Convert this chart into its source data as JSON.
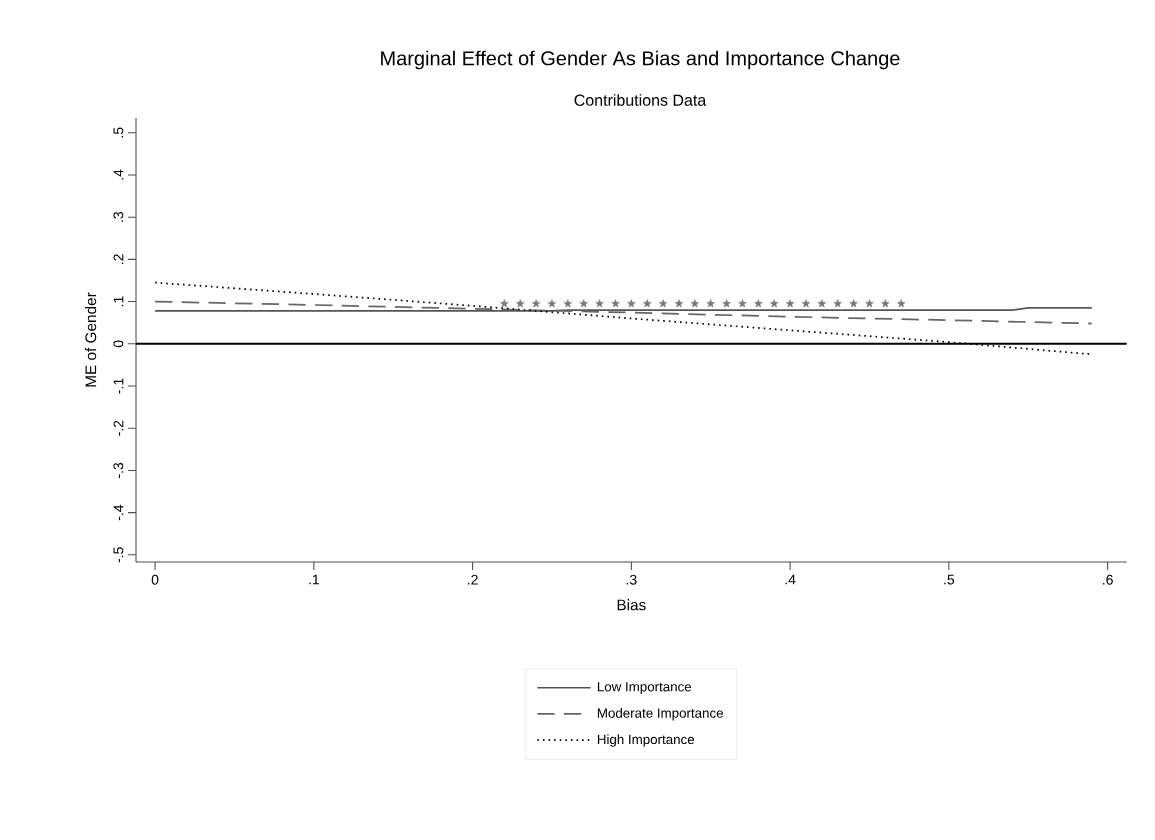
{
  "chart_data": {
    "type": "line",
    "title": "Marginal Effect of Gender As Bias and Importance Change",
    "subtitle": "Contributions Data",
    "xlabel": "Bias",
    "ylabel": "ME of Gender",
    "xlim": [
      -0.012,
      0.612
    ],
    "ylim": [
      -0.517,
      0.535
    ],
    "xticks": [
      {
        "value": 0,
        "label": "0"
      },
      {
        "value": 0.1,
        "label": ".1"
      },
      {
        "value": 0.2,
        "label": ".2"
      },
      {
        "value": 0.3,
        "label": ".3"
      },
      {
        "value": 0.4,
        "label": ".4"
      },
      {
        "value": 0.5,
        "label": ".5"
      },
      {
        "value": 0.6,
        "label": ".6"
      }
    ],
    "yticks": [
      {
        "value": -0.5,
        "label": "-.5"
      },
      {
        "value": -0.4,
        "label": "-.4"
      },
      {
        "value": -0.3,
        "label": "-.3"
      },
      {
        "value": -0.2,
        "label": "-.2"
      },
      {
        "value": -0.1,
        "label": "-.1"
      },
      {
        "value": 0,
        "label": "0"
      },
      {
        "value": 0.1,
        "label": ".1"
      },
      {
        "value": 0.2,
        "label": ".2"
      },
      {
        "value": 0.3,
        "label": ".3"
      },
      {
        "value": 0.4,
        "label": ".4"
      },
      {
        "value": 0.5,
        "label": ".5"
      }
    ],
    "legend": "bottom",
    "grid": false,
    "ref_lines": [
      {
        "axis": "y",
        "value": 0,
        "color": "#000000"
      }
    ],
    "series": [
      {
        "name": "Low Importance",
        "color": "#555555",
        "line_style": "solid",
        "x": [
          0,
          0.25,
          0.26,
          0.54,
          0.55,
          0.59
        ],
        "values": [
          0.078,
          0.078,
          0.08,
          0.08,
          0.085,
          0.085
        ]
      },
      {
        "name": "Moderate Importance",
        "color": "#666666",
        "line_style": "dashed",
        "x": [
          0,
          0.1,
          0.2,
          0.3,
          0.4,
          0.5,
          0.59
        ],
        "values": [
          0.1,
          0.092,
          0.083,
          0.074,
          0.064,
          0.056,
          0.048
        ]
      },
      {
        "name": "High Importance",
        "color": "#000000",
        "line_style": "dotted",
        "x": [
          0,
          0.1,
          0.2,
          0.3,
          0.4,
          0.5,
          0.59
        ],
        "values": [
          0.145,
          0.118,
          0.09,
          0.06,
          0.032,
          0.004,
          -0.025
        ]
      },
      {
        "type": "scatter",
        "marker": "star",
        "color": "#777777",
        "x": [
          0.22,
          0.23,
          0.24,
          0.25,
          0.26,
          0.27,
          0.28,
          0.29,
          0.3,
          0.31,
          0.32,
          0.33,
          0.34,
          0.35,
          0.36,
          0.37,
          0.38,
          0.39,
          0.4,
          0.41,
          0.42,
          0.43,
          0.44,
          0.45,
          0.46,
          0.47
        ],
        "values": [
          0.095,
          0.095,
          0.095,
          0.095,
          0.095,
          0.095,
          0.095,
          0.095,
          0.095,
          0.095,
          0.095,
          0.095,
          0.095,
          0.095,
          0.095,
          0.095,
          0.095,
          0.095,
          0.095,
          0.095,
          0.095,
          0.095,
          0.095,
          0.095,
          0.095,
          0.095
        ]
      }
    ]
  }
}
